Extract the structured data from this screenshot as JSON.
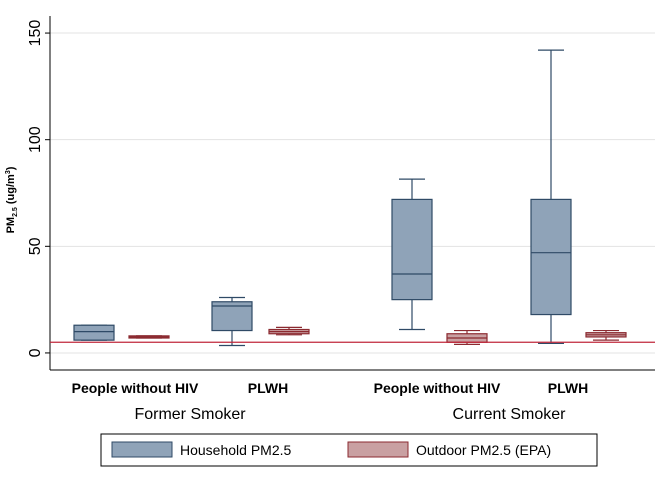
{
  "chart_data": {
    "type": "boxplot",
    "title": "",
    "ylabel": "PM",
    "ylabel_sub": "2.5",
    "ylabel_units": "(ug/m",
    "ylabel_sup": "3",
    "ylabel_close": ")",
    "ylim": [
      -8,
      158
    ],
    "yticks": [
      0,
      50,
      100,
      150
    ],
    "grid": true,
    "reference_line": {
      "value": 5,
      "color": "#c0283c"
    },
    "categories": [
      "People without HIV",
      "PLWH",
      "People without HIV",
      "PLWH"
    ],
    "groups": [
      "Former Smoker",
      "Current Smoker"
    ],
    "series": [
      {
        "name": "Household PM2.5",
        "color": "#8fa3b8",
        "stroke": "#2f4a66",
        "boxes": [
          {
            "group": "Former Smoker",
            "category": "People without HIV",
            "whisker_low": 6,
            "q1": 6,
            "median": 10,
            "q3": 13,
            "whisker_high": 13
          },
          {
            "group": "Former Smoker",
            "category": "PLWH",
            "whisker_low": 3.5,
            "q1": 10.5,
            "median": 22,
            "q3": 24,
            "whisker_high": 26
          },
          {
            "group": "Current Smoker",
            "category": "People without HIV",
            "whisker_low": 11,
            "q1": 25,
            "median": 37,
            "q3": 72,
            "whisker_high": 81.5
          },
          {
            "group": "Current Smoker",
            "category": "PLWH",
            "whisker_low": 4.5,
            "q1": 18,
            "median": 47,
            "q3": 72,
            "whisker_high": 142
          }
        ]
      },
      {
        "name": "Outdoor PM2.5 (EPA)",
        "color": "#c9a0a2",
        "stroke": "#8b2a30",
        "boxes": [
          {
            "group": "Former Smoker",
            "category": "People without HIV",
            "whisker_low": 7,
            "q1": 7,
            "median": 7.5,
            "q3": 8,
            "whisker_high": 8
          },
          {
            "group": "Former Smoker",
            "category": "PLWH",
            "whisker_low": 8.5,
            "q1": 9,
            "median": 10,
            "q3": 11,
            "whisker_high": 12
          },
          {
            "group": "Current Smoker",
            "category": "People without HIV",
            "whisker_low": 4,
            "q1": 5,
            "median": 7,
            "q3": 9,
            "whisker_high": 10.5
          },
          {
            "group": "Current Smoker",
            "category": "PLWH",
            "whisker_low": 6,
            "q1": 7.5,
            "median": 8.5,
            "q3": 9.5,
            "whisker_high": 10.5
          }
        ]
      }
    ],
    "legend": {
      "placement": "bottom",
      "entries": [
        "Household PM2.5",
        "Outdoor PM2.5 (EPA)"
      ]
    }
  }
}
